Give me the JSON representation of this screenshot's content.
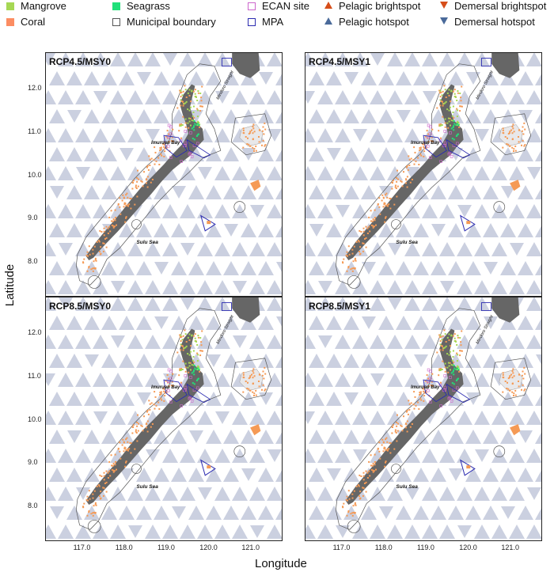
{
  "legend": {
    "items": [
      {
        "label": "Mangrove",
        "kind": "square",
        "color": "#a6d854"
      },
      {
        "label": "Coral",
        "kind": "square",
        "color": "#fc8d62"
      },
      {
        "label": "Seagrass",
        "kind": "square",
        "color": "#21e07a"
      },
      {
        "label": "Municipal boundary",
        "kind": "square-outline",
        "color": "#555555"
      },
      {
        "label": "ECAN site",
        "kind": "square-outline",
        "color": "#cc66cc"
      },
      {
        "label": "MPA",
        "kind": "square-outline",
        "color": "#2b2bb0"
      },
      {
        "label": "Pelagic brightspot",
        "kind": "triangle-up",
        "color": "#d64e1a"
      },
      {
        "label": "Pelagic hotspot",
        "kind": "triangle-up",
        "color": "#4a6a9a"
      },
      {
        "label": "Demersal brightspot",
        "kind": "triangle-down",
        "color": "#d64e1a"
      },
      {
        "label": "Demersal hotspot",
        "kind": "triangle-down",
        "color": "#4a6a9a"
      }
    ]
  },
  "panels": [
    {
      "title": "RCP4.5/MSY0"
    },
    {
      "title": "RCP4.5/MSY1"
    },
    {
      "title": "RCP8.5/MSY0"
    },
    {
      "title": "RCP8.5/MSY1"
    }
  ],
  "places": {
    "bay": "Imuruan Bay",
    "sea": "Sulu Sea",
    "strait": "Mindoro Straight"
  },
  "axes": {
    "xlabel": "Longitude",
    "ylabel": "Latitude",
    "xticks": [
      "117.0",
      "118.0",
      "119.0",
      "120.0",
      "121.0"
    ],
    "yticks": [
      "12.0",
      "11.0",
      "10.0",
      "9.0",
      "8.0"
    ],
    "xlim": [
      116.2,
      121.8
    ],
    "ylim": [
      7.2,
      12.8
    ]
  },
  "colors": {
    "land": "#666666",
    "hotspot": "#a9b1cb",
    "coral": "#f59a55",
    "mangrove": "#a6d854",
    "seagrass": "#21e07a",
    "mpa": "#2b2bb0",
    "ecan": "#cc66cc",
    "boundary": "#555555"
  }
}
